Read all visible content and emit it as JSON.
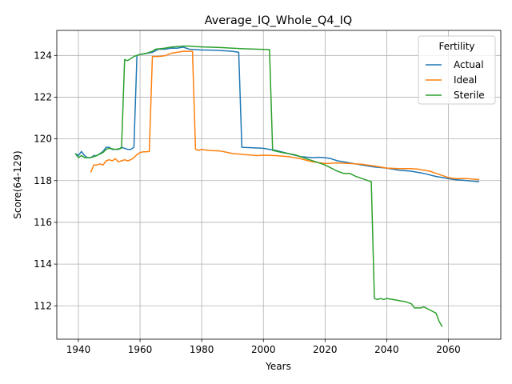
{
  "chart_data": {
    "type": "line",
    "title": "Average_IQ_Whole_Q4_IQ",
    "xlabel": "Years",
    "ylabel": "Score(64-129)",
    "xlim": [
      1933,
      2077
    ],
    "ylim": [
      110.4,
      125.2
    ],
    "xticks": [
      1940,
      1960,
      1980,
      2000,
      2020,
      2040,
      2060
    ],
    "yticks": [
      112,
      114,
      116,
      118,
      120,
      122,
      124
    ],
    "grid": true,
    "legend": {
      "title": "Fertility",
      "placement": "top-right"
    },
    "series": [
      {
        "name": "Actual",
        "color": "#1f77b4",
        "points": [
          [
            1939,
            119.3
          ],
          [
            1940,
            119.2
          ],
          [
            1941,
            119.4
          ],
          [
            1942,
            119.2
          ],
          [
            1943,
            119.1
          ],
          [
            1944,
            119.1
          ],
          [
            1945,
            119.2
          ],
          [
            1946,
            119.2
          ],
          [
            1947,
            119.3
          ],
          [
            1948,
            119.4
          ],
          [
            1949,
            119.6
          ],
          [
            1950,
            119.6
          ],
          [
            1951,
            119.5
          ],
          [
            1952,
            119.5
          ],
          [
            1953,
            119.5
          ],
          [
            1954,
            119.6
          ],
          [
            1955,
            119.55
          ],
          [
            1956,
            119.5
          ],
          [
            1957,
            119.5
          ],
          [
            1958,
            119.6
          ],
          [
            1959,
            124.0
          ],
          [
            1960,
            124.05
          ],
          [
            1962,
            124.1
          ],
          [
            1964,
            124.15
          ],
          [
            1966,
            124.3
          ],
          [
            1968,
            124.3
          ],
          [
            1970,
            124.35
          ],
          [
            1972,
            124.35
          ],
          [
            1974,
            124.4
          ],
          [
            1976,
            124.3
          ],
          [
            1978,
            124.28
          ],
          [
            1980,
            124.26
          ],
          [
            1984,
            124.25
          ],
          [
            1988,
            124.22
          ],
          [
            1990,
            124.2
          ],
          [
            1992,
            124.15
          ],
          [
            1993,
            119.6
          ],
          [
            1996,
            119.58
          ],
          [
            2000,
            119.55
          ],
          [
            2002,
            119.5
          ],
          [
            2004,
            119.45
          ],
          [
            2008,
            119.3
          ],
          [
            2012,
            119.15
          ],
          [
            2016,
            119.1
          ],
          [
            2018,
            119.12
          ],
          [
            2020,
            119.1
          ],
          [
            2022,
            119.05
          ],
          [
            2024,
            118.95
          ],
          [
            2026,
            118.9
          ],
          [
            2028,
            118.85
          ],
          [
            2032,
            118.75
          ],
          [
            2036,
            118.65
          ],
          [
            2040,
            118.6
          ],
          [
            2044,
            118.5
          ],
          [
            2048,
            118.45
          ],
          [
            2052,
            118.35
          ],
          [
            2056,
            118.2
          ],
          [
            2058,
            118.15
          ],
          [
            2060,
            118.1
          ],
          [
            2062,
            118.05
          ],
          [
            2066,
            118.0
          ],
          [
            2070,
            117.95
          ]
        ]
      },
      {
        "name": "Ideal",
        "color": "#ff7f0e",
        "points": [
          [
            1944,
            118.4
          ],
          [
            1945,
            118.75
          ],
          [
            1946,
            118.75
          ],
          [
            1947,
            118.8
          ],
          [
            1948,
            118.75
          ],
          [
            1949,
            118.95
          ],
          [
            1950,
            119.0
          ],
          [
            1951,
            118.95
          ],
          [
            1952,
            119.05
          ],
          [
            1953,
            118.9
          ],
          [
            1954,
            118.95
          ],
          [
            1955,
            119.0
          ],
          [
            1956,
            118.95
          ],
          [
            1957,
            119.0
          ],
          [
            1958,
            119.1
          ],
          [
            1959,
            119.25
          ],
          [
            1960,
            119.35
          ],
          [
            1961,
            119.38
          ],
          [
            1962,
            119.38
          ],
          [
            1963,
            119.4
          ],
          [
            1964,
            123.95
          ],
          [
            1965,
            123.95
          ],
          [
            1966,
            123.95
          ],
          [
            1968,
            123.98
          ],
          [
            1970,
            124.1
          ],
          [
            1972,
            124.15
          ],
          [
            1974,
            124.2
          ],
          [
            1976,
            124.2
          ],
          [
            1977,
            124.2
          ],
          [
            1978,
            119.5
          ],
          [
            1979,
            119.45
          ],
          [
            1980,
            119.5
          ],
          [
            1982,
            119.45
          ],
          [
            1986,
            119.42
          ],
          [
            1990,
            119.3
          ],
          [
            1994,
            119.25
          ],
          [
            1998,
            119.2
          ],
          [
            2000,
            119.22
          ],
          [
            2004,
            119.2
          ],
          [
            2008,
            119.15
          ],
          [
            2012,
            119.05
          ],
          [
            2016,
            118.9
          ],
          [
            2020,
            118.82
          ],
          [
            2024,
            118.85
          ],
          [
            2028,
            118.82
          ],
          [
            2032,
            118.78
          ],
          [
            2036,
            118.7
          ],
          [
            2040,
            118.6
          ],
          [
            2044,
            118.58
          ],
          [
            2048,
            118.58
          ],
          [
            2050,
            118.55
          ],
          [
            2052,
            118.5
          ],
          [
            2054,
            118.45
          ],
          [
            2056,
            118.35
          ],
          [
            2058,
            118.25
          ],
          [
            2060,
            118.15
          ],
          [
            2062,
            118.1
          ],
          [
            2066,
            118.1
          ],
          [
            2070,
            118.05
          ]
        ]
      },
      {
        "name": "Sterile",
        "color": "#2ca02c",
        "points": [
          [
            1939,
            119.3
          ],
          [
            1940,
            119.1
          ],
          [
            1941,
            119.2
          ],
          [
            1942,
            119.1
          ],
          [
            1944,
            119.1
          ],
          [
            1946,
            119.2
          ],
          [
            1948,
            119.35
          ],
          [
            1949,
            119.5
          ],
          [
            1950,
            119.55
          ],
          [
            1952,
            119.5
          ],
          [
            1954,
            119.55
          ],
          [
            1955,
            123.8
          ],
          [
            1956,
            123.75
          ],
          [
            1958,
            123.95
          ],
          [
            1960,
            124.05
          ],
          [
            1962,
            124.1
          ],
          [
            1964,
            124.2
          ],
          [
            1965,
            124.3
          ],
          [
            1968,
            124.35
          ],
          [
            1970,
            124.4
          ],
          [
            1972,
            124.42
          ],
          [
            1974,
            124.45
          ],
          [
            1976,
            124.45
          ],
          [
            1978,
            124.42
          ],
          [
            1982,
            124.4
          ],
          [
            1986,
            124.38
          ],
          [
            1990,
            124.35
          ],
          [
            1994,
            124.32
          ],
          [
            1998,
            124.3
          ],
          [
            2002,
            124.28
          ],
          [
            2003,
            119.45
          ],
          [
            2006,
            119.35
          ],
          [
            2010,
            119.25
          ],
          [
            2014,
            119.05
          ],
          [
            2018,
            118.85
          ],
          [
            2020,
            118.75
          ],
          [
            2022,
            118.6
          ],
          [
            2024,
            118.45
          ],
          [
            2026,
            118.35
          ],
          [
            2028,
            118.35
          ],
          [
            2030,
            118.2
          ],
          [
            2032,
            118.1
          ],
          [
            2034,
            118.0
          ],
          [
            2035,
            117.95
          ],
          [
            2036,
            112.35
          ],
          [
            2037,
            112.3
          ],
          [
            2038,
            112.35
          ],
          [
            2039,
            112.3
          ],
          [
            2040,
            112.35
          ],
          [
            2042,
            112.3
          ],
          [
            2044,
            112.25
          ],
          [
            2046,
            112.2
          ],
          [
            2048,
            112.1
          ],
          [
            2049,
            111.9
          ],
          [
            2051,
            111.9
          ],
          [
            2052,
            111.95
          ],
          [
            2054,
            111.8
          ],
          [
            2056,
            111.65
          ],
          [
            2057,
            111.25
          ],
          [
            2058,
            111.0
          ]
        ]
      }
    ]
  }
}
